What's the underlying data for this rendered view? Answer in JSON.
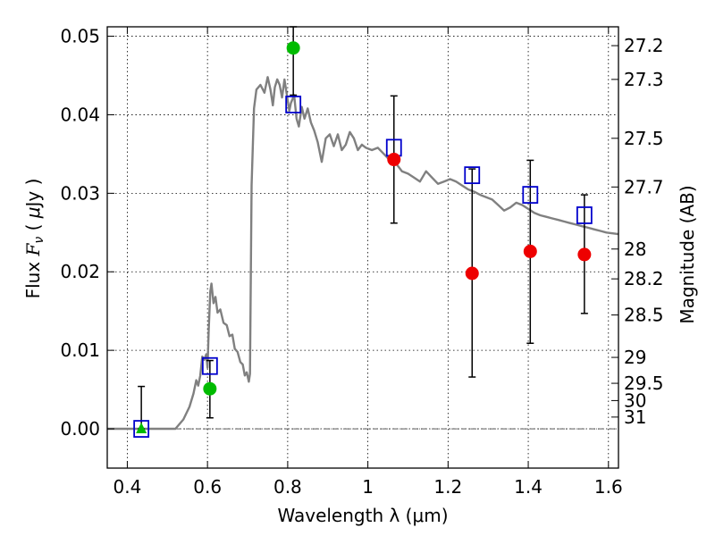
{
  "chart_data": {
    "type": "scatter",
    "xlabel": "Wavelength  λ (μm)",
    "ylabel": "Flux  F_ν  ( μJy )",
    "ylabel_right": "Magnitude (AB)",
    "xlim": [
      0.35,
      1.625
    ],
    "ylim": [
      -0.005,
      0.0512
    ],
    "grid": true,
    "x_ticks": [
      {
        "value": 0.4,
        "label": "0.4"
      },
      {
        "value": 0.6,
        "label": "0.6"
      },
      {
        "value": 0.8,
        "label": "0.8"
      },
      {
        "value": 1.0,
        "label": "1"
      },
      {
        "value": 1.2,
        "label": "1.2"
      },
      {
        "value": 1.4,
        "label": "1.4"
      },
      {
        "value": 1.6,
        "label": "1.6"
      }
    ],
    "y_ticks": [
      {
        "value": 0.0,
        "label": "0.00"
      },
      {
        "value": 0.01,
        "label": "0.01"
      },
      {
        "value": 0.02,
        "label": "0.02"
      },
      {
        "value": 0.03,
        "label": "0.03"
      },
      {
        "value": 0.04,
        "label": "0.04"
      },
      {
        "value": 0.05,
        "label": "0.05"
      }
    ],
    "mag_ticks": [
      {
        "label": "27.2",
        "flux": 0.0488
      },
      {
        "label": "27.3",
        "flux": 0.0445
      },
      {
        "label": "27.5",
        "flux": 0.037
      },
      {
        "label": "27.7",
        "flux": 0.0308
      },
      {
        "label": "28",
        "flux": 0.0229
      },
      {
        "label": "28.2",
        "flux": 0.0191
      },
      {
        "label": "28.5",
        "flux": 0.0145
      },
      {
        "label": "29",
        "flux": 0.0091
      },
      {
        "label": "29.5",
        "flux": 0.0058
      },
      {
        "label": "30",
        "flux": 0.0036
      },
      {
        "label": "31",
        "flux": 0.0015
      }
    ],
    "series": [
      {
        "kind": "model_spectrum",
        "color": "#808080",
        "points": [
          [
            0.35,
            0.0
          ],
          [
            0.52,
            0.0
          ],
          [
            0.54,
            0.0012
          ],
          [
            0.555,
            0.0028
          ],
          [
            0.565,
            0.0045
          ],
          [
            0.572,
            0.0062
          ],
          [
            0.577,
            0.0055
          ],
          [
            0.582,
            0.0068
          ],
          [
            0.587,
            0.0092
          ],
          [
            0.592,
            0.0088
          ],
          [
            0.597,
            0.0095
          ],
          [
            0.6,
            0.0078
          ],
          [
            0.603,
            0.0125
          ],
          [
            0.607,
            0.0175
          ],
          [
            0.61,
            0.0185
          ],
          [
            0.615,
            0.016
          ],
          [
            0.62,
            0.0168
          ],
          [
            0.625,
            0.0148
          ],
          [
            0.632,
            0.0152
          ],
          [
            0.64,
            0.0135
          ],
          [
            0.648,
            0.0132
          ],
          [
            0.655,
            0.0118
          ],
          [
            0.662,
            0.012
          ],
          [
            0.668,
            0.0102
          ],
          [
            0.675,
            0.0098
          ],
          [
            0.682,
            0.0085
          ],
          [
            0.688,
            0.0082
          ],
          [
            0.693,
            0.0068
          ],
          [
            0.698,
            0.0072
          ],
          [
            0.703,
            0.006
          ],
          [
            0.706,
            0.007
          ],
          [
            0.71,
            0.031
          ],
          [
            0.716,
            0.0408
          ],
          [
            0.722,
            0.0432
          ],
          [
            0.732,
            0.0438
          ],
          [
            0.742,
            0.0428
          ],
          [
            0.75,
            0.0448
          ],
          [
            0.757,
            0.0432
          ],
          [
            0.763,
            0.0412
          ],
          [
            0.768,
            0.0435
          ],
          [
            0.774,
            0.0445
          ],
          [
            0.78,
            0.0438
          ],
          [
            0.786,
            0.0422
          ],
          [
            0.792,
            0.0445
          ],
          [
            0.798,
            0.0425
          ],
          [
            0.804,
            0.0405
          ],
          [
            0.808,
            0.0415
          ],
          [
            0.812,
            0.042
          ],
          [
            0.816,
            0.0425
          ],
          [
            0.822,
            0.0395
          ],
          [
            0.828,
            0.0385
          ],
          [
            0.835,
            0.041
          ],
          [
            0.842,
            0.0395
          ],
          [
            0.85,
            0.0408
          ],
          [
            0.858,
            0.039
          ],
          [
            0.866,
            0.038
          ],
          [
            0.875,
            0.0365
          ],
          [
            0.885,
            0.034
          ],
          [
            0.895,
            0.037
          ],
          [
            0.905,
            0.0375
          ],
          [
            0.915,
            0.036
          ],
          [
            0.925,
            0.0375
          ],
          [
            0.935,
            0.0355
          ],
          [
            0.945,
            0.0362
          ],
          [
            0.955,
            0.0378
          ],
          [
            0.965,
            0.037
          ],
          [
            0.975,
            0.0355
          ],
          [
            0.985,
            0.0362
          ],
          [
            0.995,
            0.0358
          ],
          [
            1.01,
            0.0355
          ],
          [
            1.025,
            0.0358
          ],
          [
            1.04,
            0.035
          ],
          [
            1.055,
            0.0342
          ],
          [
            1.07,
            0.0338
          ],
          [
            1.085,
            0.0328
          ],
          [
            1.1,
            0.0325
          ],
          [
            1.115,
            0.032
          ],
          [
            1.13,
            0.0315
          ],
          [
            1.145,
            0.0328
          ],
          [
            1.16,
            0.032
          ],
          [
            1.175,
            0.0312
          ],
          [
            1.19,
            0.0315
          ],
          [
            1.205,
            0.0318
          ],
          [
            1.22,
            0.0315
          ],
          [
            1.235,
            0.031
          ],
          [
            1.25,
            0.0305
          ],
          [
            1.265,
            0.0302
          ],
          [
            1.28,
            0.0298
          ],
          [
            1.295,
            0.0295
          ],
          [
            1.31,
            0.0292
          ],
          [
            1.325,
            0.0285
          ],
          [
            1.34,
            0.0278
          ],
          [
            1.355,
            0.0282
          ],
          [
            1.37,
            0.0288
          ],
          [
            1.385,
            0.0285
          ],
          [
            1.4,
            0.028
          ],
          [
            1.415,
            0.0275
          ],
          [
            1.43,
            0.0272
          ],
          [
            1.445,
            0.027
          ],
          [
            1.46,
            0.0268
          ],
          [
            1.475,
            0.0266
          ],
          [
            1.49,
            0.0264
          ],
          [
            1.505,
            0.0262
          ],
          [
            1.52,
            0.026
          ],
          [
            1.535,
            0.0258
          ],
          [
            1.55,
            0.0256
          ],
          [
            1.565,
            0.0254
          ],
          [
            1.58,
            0.0252
          ],
          [
            1.595,
            0.025
          ],
          [
            1.61,
            0.0249
          ],
          [
            1.625,
            0.0248
          ]
        ]
      },
      {
        "kind": "model_photometry",
        "marker": "open-square",
        "color": "#0000cc",
        "points": [
          [
            0.435,
            0.0
          ],
          [
            0.606,
            0.008
          ],
          [
            0.814,
            0.0413
          ],
          [
            1.065,
            0.0358
          ],
          [
            1.26,
            0.0323
          ],
          [
            1.405,
            0.0298
          ],
          [
            1.54,
            0.0272
          ]
        ]
      },
      {
        "kind": "observed",
        "marker": "circle",
        "color": "#00bb00",
        "points": [
          {
            "x": 0.606,
            "y": 0.0051,
            "lo": 0.0014,
            "hi": 0.0087
          },
          {
            "x": 0.814,
            "y": 0.0485,
            "lo": 0.0425,
            "hi": 0.0512
          }
        ]
      },
      {
        "kind": "observed_upper",
        "marker": "triangle",
        "color": "#00bb00",
        "points": [
          {
            "x": 0.435,
            "y": 0.0,
            "lo": 0.0,
            "hi": 0.0054
          }
        ]
      },
      {
        "kind": "observed",
        "marker": "circle",
        "color": "#ee0000",
        "points": [
          {
            "x": 1.065,
            "y": 0.0343,
            "lo": 0.0262,
            "hi": 0.0424
          },
          {
            "x": 1.26,
            "y": 0.0198,
            "lo": 0.0066,
            "hi": 0.0331
          },
          {
            "x": 1.405,
            "y": 0.0226,
            "lo": 0.0109,
            "hi": 0.0342
          },
          {
            "x": 1.54,
            "y": 0.0222,
            "lo": 0.0147,
            "hi": 0.0298
          }
        ]
      }
    ]
  }
}
